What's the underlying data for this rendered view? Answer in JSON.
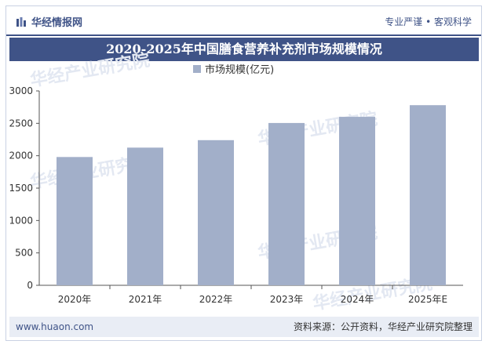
{
  "header": {
    "brand_name": "华经情报网",
    "slogan": "专业严谨 • 客观科学"
  },
  "footer": {
    "website": "www.huaon.com",
    "source": "资料来源：公开资料，华经产业研究院整理"
  },
  "watermark": "华经产业研究院",
  "colors": {
    "brand": "#3f5387",
    "bar": "#a2afc9"
  },
  "chart_data": {
    "type": "bar",
    "title": "2020-2025年中国膳食营养补充剂市场规模情况",
    "categories": [
      "2020年",
      "2021年",
      "2022年",
      "2023年",
      "2024年",
      "2025年E"
    ],
    "series": [
      {
        "name": "市场规模(亿元)",
        "values": [
          1980,
          2125,
          2240,
          2505,
          2600,
          2780
        ]
      }
    ],
    "ylim": [
      0,
      3000
    ],
    "yticks": [
      0,
      500,
      1000,
      1500,
      2000,
      2500,
      3000
    ],
    "grid": false,
    "legend_position": "top-center"
  }
}
